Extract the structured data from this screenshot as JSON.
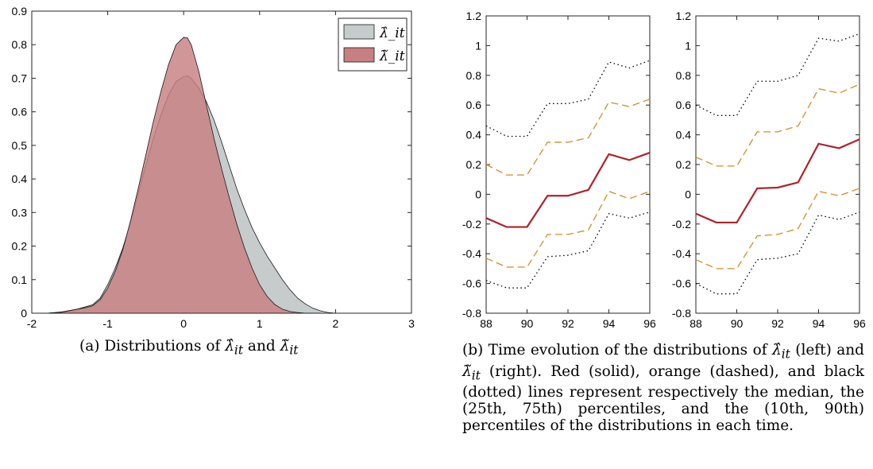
{
  "chart_data": [
    {
      "id": "a",
      "type": "area",
      "xlim": [
        -2,
        3
      ],
      "ylim": [
        0,
        0.9
      ],
      "xticks": [
        "-2",
        "-1",
        "0",
        "1",
        "2",
        "3"
      ],
      "yticks": [
        "0",
        "0.1",
        "0.2",
        "0.3",
        "0.4",
        "0.5",
        "0.6",
        "0.7",
        "0.8",
        "0.9"
      ],
      "legend_position": "top-right",
      "series": [
        {
          "name": "λ̂_it",
          "color": "#c6cccc",
          "x": [
            -1.8,
            -1.6,
            -1.4,
            -1.2,
            -1.1,
            -1.0,
            -0.9,
            -0.8,
            -0.7,
            -0.6,
            -0.5,
            -0.4,
            -0.3,
            -0.2,
            -0.1,
            0.0,
            0.05,
            0.1,
            0.2,
            0.3,
            0.4,
            0.5,
            0.6,
            0.7,
            0.8,
            0.9,
            1.0,
            1.1,
            1.2,
            1.3,
            1.4,
            1.5,
            1.6,
            1.7,
            1.8,
            1.9,
            2.0
          ],
          "y": [
            0.0,
            0.004,
            0.012,
            0.025,
            0.045,
            0.085,
            0.135,
            0.195,
            0.27,
            0.355,
            0.44,
            0.52,
            0.59,
            0.65,
            0.69,
            0.705,
            0.707,
            0.7,
            0.67,
            0.63,
            0.575,
            0.51,
            0.44,
            0.37,
            0.31,
            0.255,
            0.21,
            0.17,
            0.135,
            0.1,
            0.07,
            0.045,
            0.028,
            0.015,
            0.007,
            0.002,
            0.0
          ]
        },
        {
          "name": "λ̃_it",
          "color": "#c77f81",
          "x": [
            -1.8,
            -1.6,
            -1.4,
            -1.3,
            -1.2,
            -1.1,
            -1.0,
            -0.9,
            -0.8,
            -0.7,
            -0.6,
            -0.5,
            -0.4,
            -0.3,
            -0.2,
            -0.1,
            0.0,
            0.05,
            0.1,
            0.2,
            0.3,
            0.4,
            0.5,
            0.6,
            0.7,
            0.8,
            0.9,
            1.0,
            1.1,
            1.2,
            1.3,
            1.4,
            1.5,
            1.6,
            1.7,
            1.8
          ],
          "y": [
            0.0,
            0.003,
            0.012,
            0.016,
            0.022,
            0.04,
            0.075,
            0.125,
            0.19,
            0.275,
            0.37,
            0.47,
            0.57,
            0.66,
            0.74,
            0.8,
            0.822,
            0.82,
            0.8,
            0.72,
            0.62,
            0.52,
            0.43,
            0.345,
            0.265,
            0.195,
            0.135,
            0.085,
            0.05,
            0.026,
            0.012,
            0.005,
            0.002,
            0.0,
            0.0,
            0.0
          ]
        }
      ]
    },
    {
      "id": "b-left",
      "type": "line",
      "xlim": [
        88,
        96
      ],
      "ylim": [
        -0.8,
        1.2
      ],
      "xticks": [
        "88",
        "90",
        "92",
        "94",
        "96"
      ],
      "yticks": [
        "-0.8",
        "-0.6",
        "-0.4",
        "-0.2",
        "0",
        "0.2",
        "0.4",
        "0.6",
        "0.8",
        "1",
        "1.2"
      ],
      "x": [
        88,
        89,
        90,
        91,
        92,
        93,
        94,
        95,
        96
      ],
      "series": [
        {
          "style": "dotted",
          "color": "#000000",
          "values": [
            0.6,
            0.53,
            0.53,
            0.76,
            0.76,
            0.8,
            1.05,
            1.03,
            1.08
          ]
        },
        {
          "style": "dashed",
          "color": "#d08d2a",
          "values": [
            0.25,
            0.19,
            0.19,
            0.42,
            0.42,
            0.46,
            0.71,
            0.68,
            0.74
          ]
        },
        {
          "style": "solid",
          "color": "#b0222a",
          "values": [
            -0.13,
            -0.19,
            -0.19,
            0.04,
            0.045,
            0.08,
            0.34,
            0.31,
            0.37
          ]
        },
        {
          "style": "dashed",
          "color": "#d08d2a",
          "values": [
            -0.44,
            -0.5,
            -0.5,
            -0.28,
            -0.27,
            -0.23,
            0.02,
            -0.01,
            0.04
          ]
        },
        {
          "style": "dotted",
          "color": "#000000",
          "values": [
            -0.6,
            -0.67,
            -0.67,
            -0.44,
            -0.43,
            -0.4,
            -0.14,
            -0.17,
            -0.12
          ]
        }
      ]
    },
    {
      "id": "b-right",
      "type": "line",
      "xlim": [
        88,
        96
      ],
      "ylim": [
        -0.8,
        1.2
      ],
      "xticks": [
        "88",
        "90",
        "92",
        "94",
        "96"
      ],
      "yticks": [
        "-0.8",
        "-0.6",
        "-0.4",
        "-0.2",
        "0",
        "0.2",
        "0.4",
        "0.6",
        "0.8",
        "1",
        "1.2"
      ],
      "x": [
        88,
        89,
        90,
        91,
        92,
        93,
        94,
        95,
        96
      ],
      "series": [
        {
          "style": "dotted",
          "color": "#000000",
          "values": [
            0.46,
            0.39,
            0.39,
            0.61,
            0.61,
            0.64,
            0.89,
            0.85,
            0.9
          ]
        },
        {
          "style": "dashed",
          "color": "#d08d2a",
          "values": [
            0.2,
            0.13,
            0.13,
            0.35,
            0.35,
            0.38,
            0.62,
            0.59,
            0.64
          ]
        },
        {
          "style": "solid",
          "color": "#b0222a",
          "values": [
            -0.16,
            -0.22,
            -0.22,
            -0.01,
            -0.01,
            0.03,
            0.27,
            0.23,
            0.28
          ]
        },
        {
          "style": "dashed",
          "color": "#d08d2a",
          "values": [
            -0.43,
            -0.49,
            -0.49,
            -0.27,
            -0.27,
            -0.24,
            0.02,
            -0.03,
            0.02
          ]
        },
        {
          "style": "dotted",
          "color": "#000000",
          "values": [
            -0.58,
            -0.63,
            -0.63,
            -0.42,
            -0.41,
            -0.38,
            -0.13,
            -0.16,
            -0.12
          ]
        }
      ]
    }
  ],
  "captions": {
    "a": {
      "prefix": "(a) Distributions of ",
      "sym1": "λ̂",
      "sub1": "it",
      "mid": " and ",
      "sym2": "λ̃",
      "sub2": "it"
    },
    "b": {
      "prefix": "(b) Time evolution of the distributions of ",
      "sym1": "λ̂",
      "sub1": "it",
      "mid": " (left) and ",
      "sym2": "λ̃",
      "sub2": "it",
      "rest": " (right). Red (solid), orange (dashed), and black (dotted) lines represent respectively the median, the (25th, 75th) percentiles, and the (10th, 90th) percentiles of the distributions in each time."
    }
  }
}
